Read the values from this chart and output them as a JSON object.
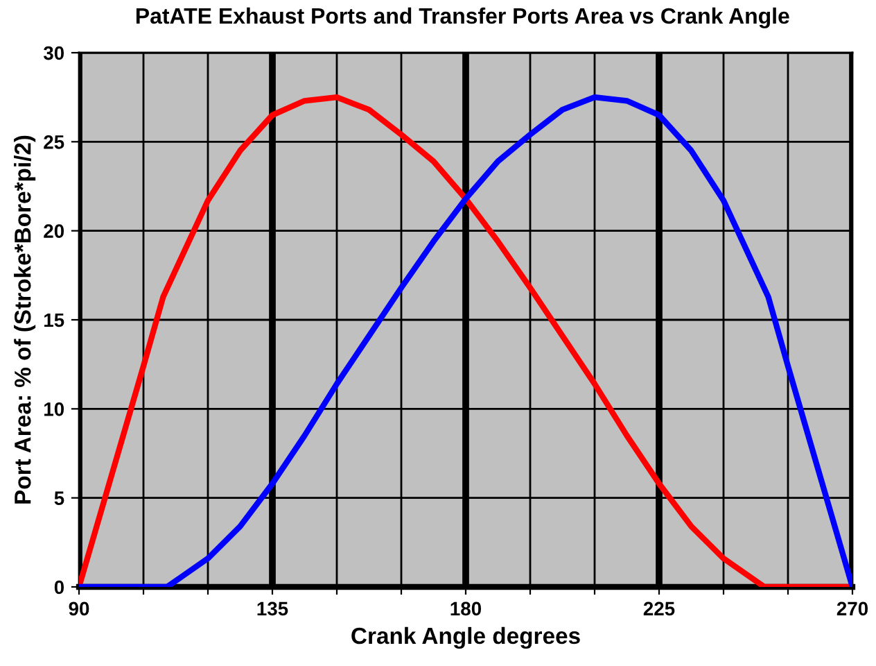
{
  "chart_data": {
    "type": "line",
    "title": "PatATE Exhaust Ports and Transfer Ports Area vs Crank Angle",
    "xlabel": "Crank Angle degrees",
    "ylabel": "Port Area: % of (Stroke*Bore*pi/2)",
    "series": [
      {
        "color": "#ff0000",
        "x": [
          90,
          105,
          109.6,
          120,
          127.5,
          135,
          142.5,
          150,
          157.5,
          165,
          172.5,
          180,
          187.5,
          195,
          202.5,
          210,
          217.5,
          225,
          232.5,
          240,
          249.5,
          270
        ],
        "values": [
          0,
          12.4,
          16.3,
          21.7,
          24.5,
          26.5,
          27.3,
          27.5,
          26.8,
          25.4,
          23.9,
          21.8,
          19.4,
          16.8,
          14.1,
          11.4,
          8.5,
          5.8,
          3.4,
          1.6,
          0,
          0
        ]
      },
      {
        "color": "#0000ff",
        "x": [
          90,
          110.5,
          120,
          127.5,
          135,
          142.5,
          150,
          157.5,
          165,
          172.5,
          180,
          187.5,
          195,
          202.5,
          210,
          217.5,
          225,
          232.5,
          240,
          250.4,
          255,
          270
        ],
        "values": [
          0,
          0,
          1.6,
          3.4,
          5.8,
          8.5,
          11.4,
          14.1,
          16.8,
          19.4,
          21.8,
          23.9,
          25.4,
          26.8,
          27.5,
          27.3,
          26.5,
          24.5,
          21.7,
          16.3,
          12.4,
          0
        ]
      }
    ],
    "xlim": [
      90,
      270
    ],
    "ylim": [
      0,
      30
    ],
    "xticks": [
      90,
      {
        "value": 105,
        "label": null
      },
      {
        "value": 120,
        "label": null
      },
      135,
      {
        "value": 150,
        "label": null
      },
      {
        "value": 165,
        "label": null
      },
      180,
      {
        "value": 195,
        "label": null
      },
      {
        "value": 210,
        "label": null
      },
      225,
      {
        "value": 240,
        "label": null
      },
      {
        "value": 255,
        "label": null
      },
      270
    ],
    "yticks": [
      0,
      5,
      10,
      15,
      20,
      25,
      30
    ],
    "grid": true,
    "legend": false,
    "marker": "none",
    "line_style": "solid"
  }
}
